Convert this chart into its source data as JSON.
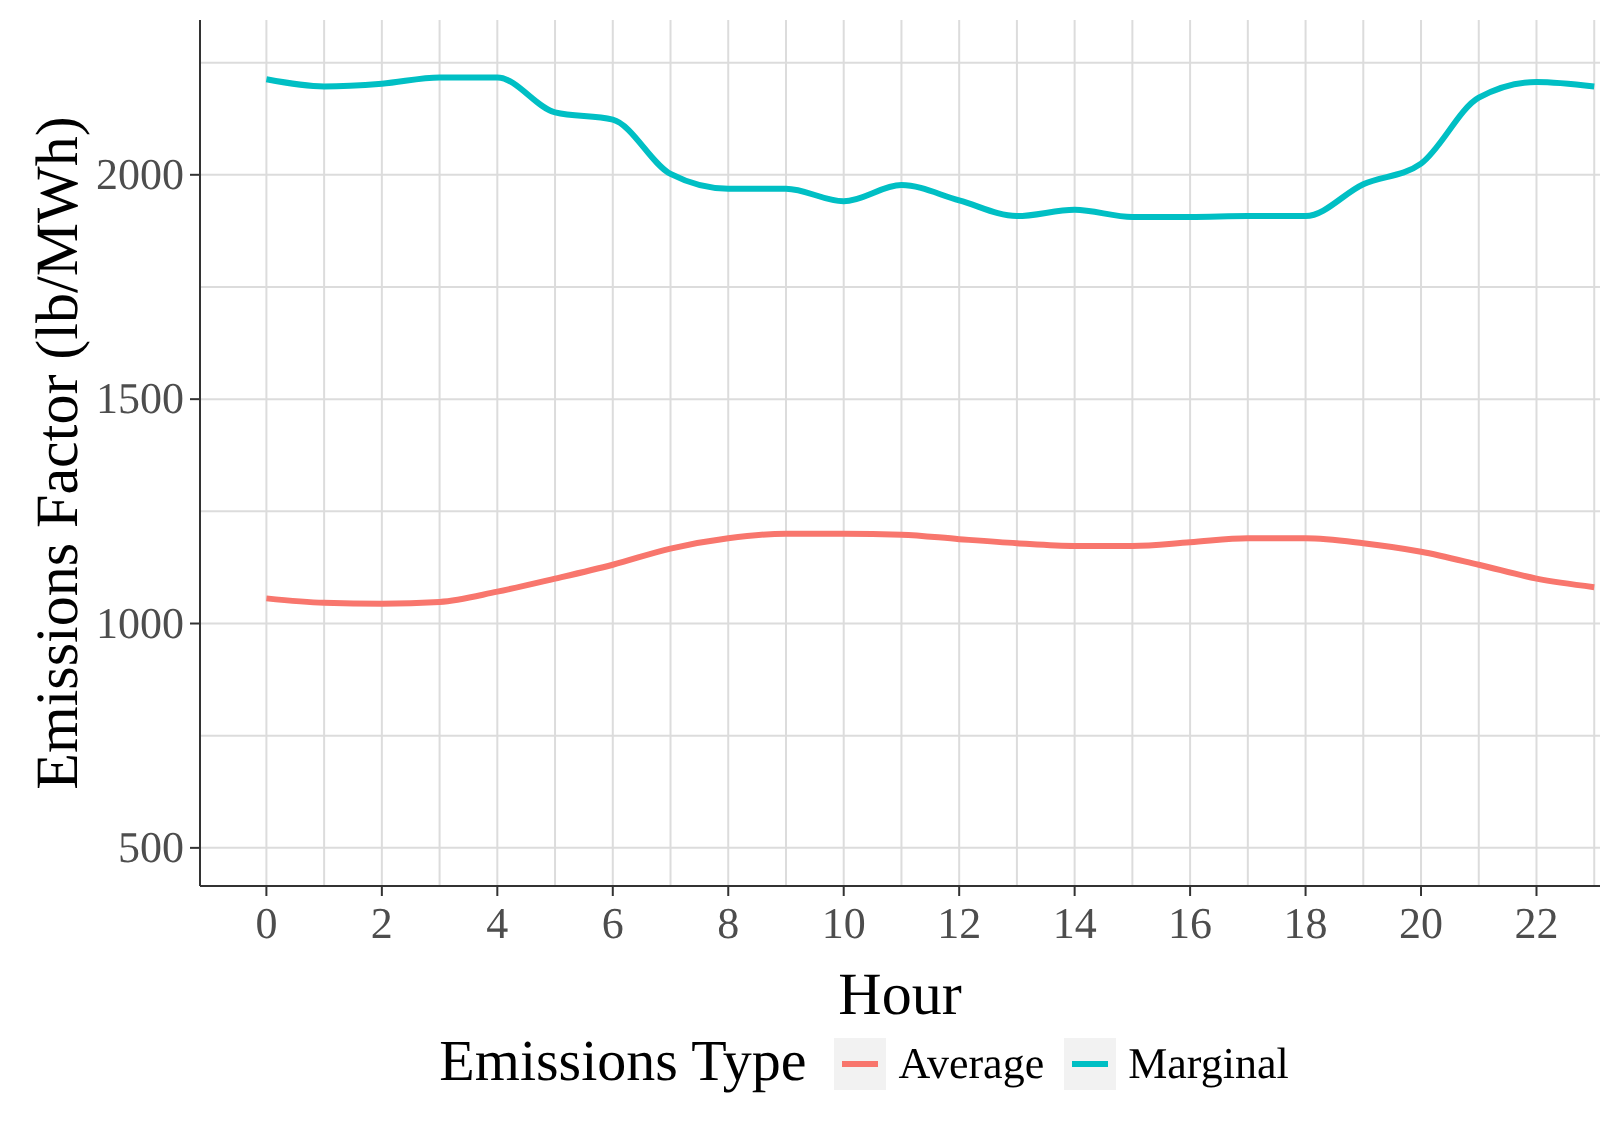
{
  "chart_data": {
    "type": "line",
    "xlabel": "Hour",
    "ylabel": "Emissions Factor (lb/MWh)",
    "legend_title": "Emissions Type",
    "legend": "bottom",
    "grid": true,
    "marker": "none",
    "line_style": "solid",
    "x": [
      0,
      1,
      2,
      3,
      4,
      5,
      6,
      7,
      8,
      9,
      10,
      11,
      12,
      13,
      14,
      15,
      16,
      17,
      18,
      19,
      20,
      21,
      22,
      23
    ],
    "xlim": [
      -1.15,
      23.1
    ],
    "xticks": [
      0,
      {
        "value": 1,
        "label": null
      },
      2,
      {
        "value": 3,
        "label": null
      },
      4,
      {
        "value": 5,
        "label": null
      },
      6,
      {
        "value": 7,
        "label": null
      },
      8,
      {
        "value": 9,
        "label": null
      },
      10,
      {
        "value": 11,
        "label": null
      },
      12,
      {
        "value": 13,
        "label": null
      },
      14,
      {
        "value": 15,
        "label": null
      },
      16,
      {
        "value": 17,
        "label": null
      },
      18,
      {
        "value": 19,
        "label": null
      },
      20,
      {
        "value": 21,
        "label": null
      },
      22,
      {
        "value": 23,
        "label": null
      }
    ],
    "ylim": [
      415,
      2345
    ],
    "yticks": [
      500,
      {
        "value": 750,
        "label": null
      },
      1000,
      {
        "value": 1250,
        "label": null
      },
      1500,
      {
        "value": 1750,
        "label": null
      },
      2000,
      {
        "value": 2250,
        "label": null
      }
    ],
    "series": [
      {
        "name": "Average",
        "color": "#f8766d",
        "values": [
          1056,
          1046,
          1044,
          1048,
          1071,
          1100,
          1131,
          1167,
          1190,
          1200,
          1200,
          1198,
          1188,
          1179,
          1173,
          1173,
          1181,
          1190,
          1190,
          1179,
          1160,
          1131,
          1100,
          1081
        ]
      },
      {
        "name": "Marginal",
        "color": "#00bfc4",
        "values": [
          2213,
          2197,
          2203,
          2217,
          2217,
          2139,
          2123,
          2002,
          1969,
          1969,
          1941,
          1977,
          1943,
          1908,
          1922,
          1906,
          1906,
          1908,
          1908,
          1979,
          2025,
          2172,
          2207,
          2197
        ]
      }
    ]
  }
}
